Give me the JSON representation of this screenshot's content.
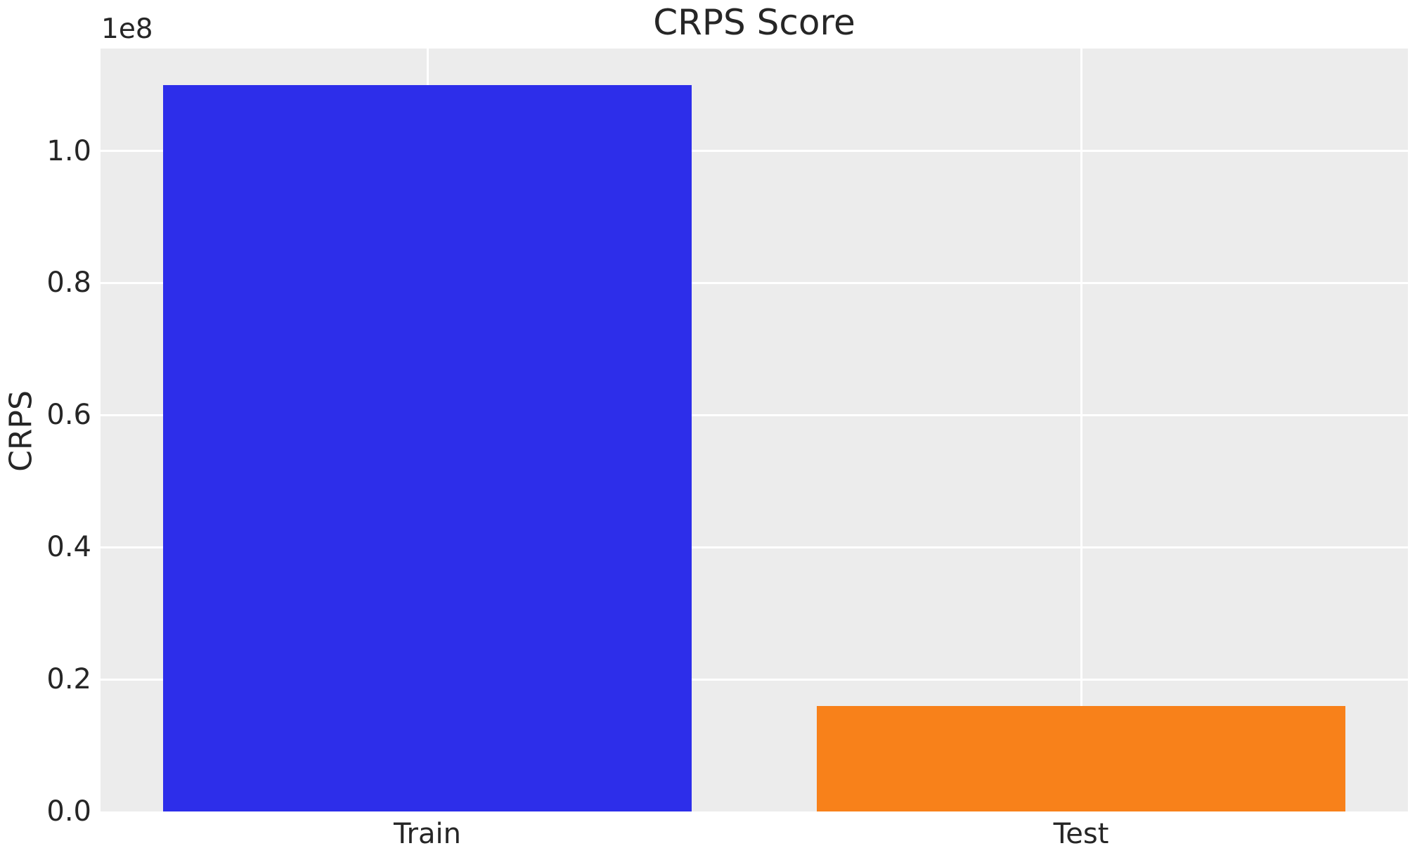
{
  "chart_data": {
    "type": "bar",
    "title": "CRPS Score",
    "categories": [
      "Train",
      "Test"
    ],
    "values": [
      110000000,
      16000000
    ],
    "bar_colors": [
      "#2d2eea",
      "#f8811a"
    ],
    "xlabel": "",
    "ylabel": "CRPS",
    "ylim": [
      0,
      115500000
    ],
    "yticks": [
      0,
      20000000,
      40000000,
      60000000,
      80000000,
      100000000
    ],
    "ytick_labels": [
      "0.0",
      "0.2",
      "0.4",
      "0.6",
      "0.8",
      "1.0"
    ],
    "offset_text": "1e8",
    "grid": true,
    "legend_position": "none",
    "plot_bg_color": "#ececec",
    "grid_color": "#ffffff",
    "text_color": "#262626",
    "bar_width_fraction": 0.808
  }
}
